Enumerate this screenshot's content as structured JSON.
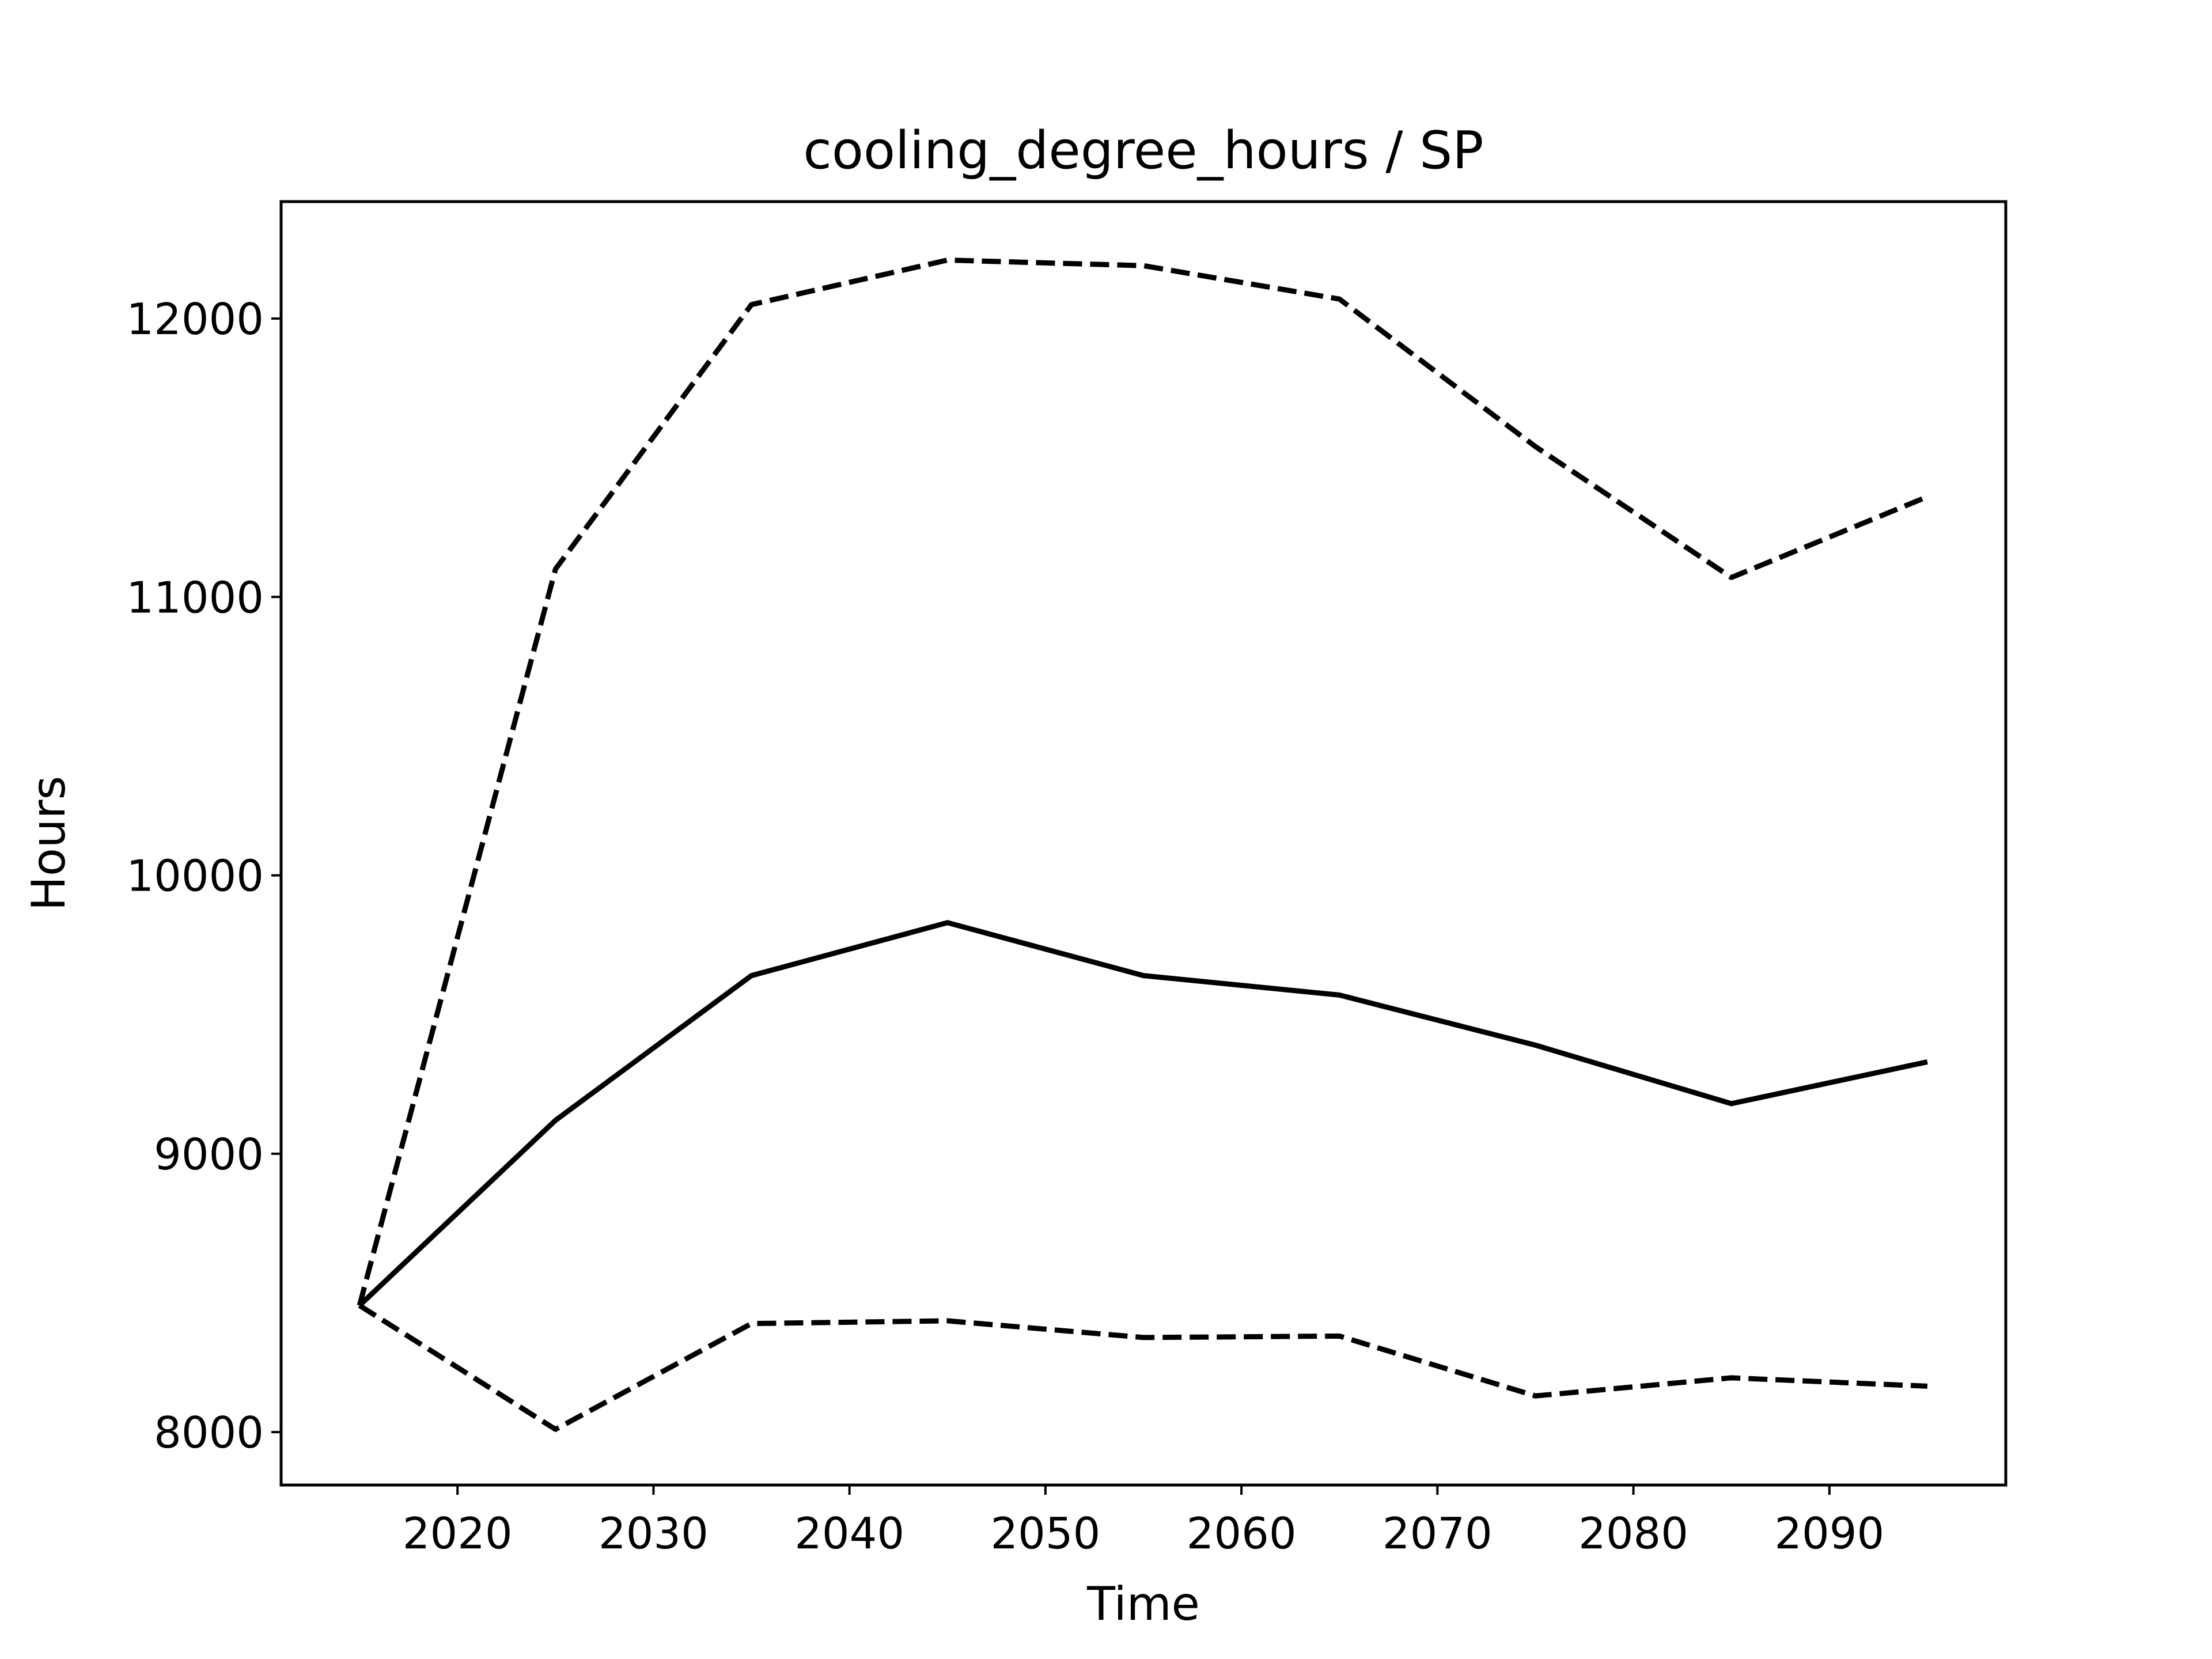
{
  "chart_data": {
    "type": "line",
    "title": "cooling_degree_hours / SP",
    "xlabel": "Time",
    "ylabel": "Hours",
    "xlim": [
      2011,
      2099
    ],
    "ylim": [
      7810,
      12420
    ],
    "xticks": [
      2020,
      2030,
      2040,
      2050,
      2060,
      2070,
      2080,
      2090
    ],
    "yticks": [
      8000,
      9000,
      10000,
      11000,
      12000
    ],
    "grid": false,
    "legend": "none",
    "colors": {
      "lines": "#000000",
      "frame": "#000000",
      "background": "#ffffff"
    },
    "x": [
      2015,
      2025,
      2035,
      2045,
      2055,
      2065,
      2075,
      2085,
      2095
    ],
    "series": [
      {
        "style": "dashed",
        "values": [
          8455,
          11100,
          12050,
          12210,
          12190,
          12070,
          11540,
          11070,
          11360
        ]
      },
      {
        "style": "solid",
        "values": [
          8455,
          9120,
          9640,
          9830,
          9640,
          9570,
          9390,
          9180,
          9330
        ]
      },
      {
        "style": "dashed",
        "values": [
          8455,
          8010,
          8390,
          8400,
          8340,
          8345,
          8130,
          8195,
          8165
        ]
      }
    ]
  }
}
